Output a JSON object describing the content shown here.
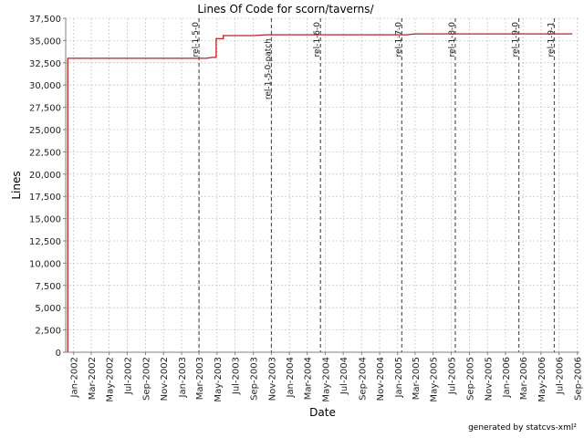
{
  "chart_data": {
    "type": "line",
    "title": "Lines Of Code for scorn/taverns/",
    "xlabel": "Date",
    "ylabel": "Lines",
    "ylim": [
      0,
      37500
    ],
    "xlim": [
      "2001-12-05",
      "2006-09-08"
    ],
    "yticks": [
      0,
      2500,
      5000,
      7500,
      10000,
      12500,
      15000,
      17500,
      20000,
      22500,
      25000,
      27500,
      30000,
      32500,
      35000,
      37500
    ],
    "ytick_labels": [
      "0",
      "2,500",
      "5,000",
      "7,500",
      "10,000",
      "12,500",
      "15,000",
      "17,500",
      "20,000",
      "22,500",
      "25,000",
      "27,500",
      "30,000",
      "32,500",
      "35,000",
      "37,500"
    ],
    "xticks": [
      "2002-01-01",
      "2002-03-01",
      "2002-05-01",
      "2002-07-01",
      "2002-09-01",
      "2002-11-01",
      "2003-01-01",
      "2003-03-01",
      "2003-05-01",
      "2003-07-01",
      "2003-09-01",
      "2003-11-01",
      "2004-01-01",
      "2004-03-01",
      "2004-05-01",
      "2004-07-01",
      "2004-09-01",
      "2004-11-01",
      "2005-01-01",
      "2005-03-01",
      "2005-05-01",
      "2005-07-01",
      "2005-09-01",
      "2005-11-01",
      "2006-01-01",
      "2006-03-01",
      "2006-05-01",
      "2006-07-01",
      "2006-09-01"
    ],
    "xtick_labels": [
      "Jan-2002",
      "Mar-2002",
      "May-2002",
      "Jul-2002",
      "Sep-2002",
      "Nov-2002",
      "Jan-2003",
      "Mar-2003",
      "May-2003",
      "Jul-2003",
      "Sep-2003",
      "Nov-2003",
      "Jan-2004",
      "Mar-2004",
      "May-2004",
      "Jul-2004",
      "Sep-2004",
      "Nov-2004",
      "Jan-2005",
      "Mar-2005",
      "May-2005",
      "Jul-2005",
      "Sep-2005",
      "Nov-2005",
      "Jan-2006",
      "Mar-2006",
      "May-2006",
      "Jul-2006",
      "Sep-2006"
    ],
    "grid": true,
    "series": [
      {
        "color": "#bb2222",
        "points": [
          {
            "x": "2001-12-12",
            "y": 0
          },
          {
            "x": "2001-12-12",
            "y": 33000
          },
          {
            "x": "2003-03-25",
            "y": 33000
          },
          {
            "x": "2003-04-15",
            "y": 33100
          },
          {
            "x": "2003-04-28",
            "y": 33100
          },
          {
            "x": "2003-04-28",
            "y": 35200
          },
          {
            "x": "2003-05-22",
            "y": 35200
          },
          {
            "x": "2003-05-22",
            "y": 35550
          },
          {
            "x": "2003-09-01",
            "y": 35550
          },
          {
            "x": "2003-10-15",
            "y": 35650
          },
          {
            "x": "2005-02-01",
            "y": 35650
          },
          {
            "x": "2005-03-01",
            "y": 35750
          },
          {
            "x": "2006-08-15",
            "y": 35750
          }
        ]
      }
    ],
    "annotations": [
      {
        "label": "rel-1-5-0",
        "x": "2003-03-01",
        "label_pos": "top"
      },
      {
        "label": "rel-1-5-0-patch",
        "x": "2003-11-01",
        "label_pos": "below"
      },
      {
        "label": "rel-1-6-0",
        "x": "2004-04-15",
        "label_pos": "top"
      },
      {
        "label": "rel-1-7-0",
        "x": "2005-01-15",
        "label_pos": "top"
      },
      {
        "label": "rel-1-8-0",
        "x": "2005-07-15",
        "label_pos": "top"
      },
      {
        "label": "rel-1-9-0",
        "x": "2006-02-15",
        "label_pos": "top"
      },
      {
        "label": "rel-1-9-1",
        "x": "2006-06-15",
        "label_pos": "top"
      }
    ]
  },
  "footer": "generated by statcvs-xml²",
  "colors": {
    "line": "#bb2222",
    "grid": "#c8c8c8",
    "marker": "#555555",
    "axis": "#808080"
  }
}
